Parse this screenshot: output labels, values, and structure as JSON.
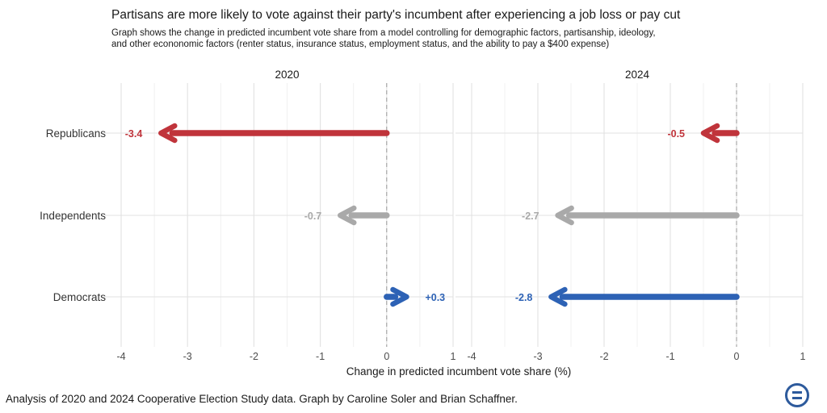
{
  "chart_data": {
    "type": "bar",
    "title": "Partisans are more likely to vote against their party's incumbent after experiencing a job loss or pay cut",
    "subtitle_lines": [
      "Graph shows the change in predicted incumbent vote share from a model controlling for demographic factors, partisanship, ideology,",
      "and other econonomic factors (renter status, insurance status, employment status, and the ability to pay a $400 expense)"
    ],
    "xlabel": "Change in predicted incumbent vote share (%)",
    "xlim": [
      -4,
      1
    ],
    "xticks": [
      -4,
      -3,
      -2,
      -1,
      0,
      1
    ],
    "xtick_labels": [
      "-4",
      "-3",
      "-2",
      "-1",
      "0",
      "1"
    ],
    "categories": [
      "Republicans",
      "Independents",
      "Democrats"
    ],
    "category_colors": {
      "Republicans": "#c0343b",
      "Independents": "#a9a9a9",
      "Democrats": "#2d62b5"
    },
    "panels": [
      {
        "name": "2020",
        "values": [
          -3.4,
          -0.7,
          0.3
        ],
        "labels": [
          "-3.4",
          "-0.7",
          "+0.3"
        ]
      },
      {
        "name": "2024",
        "values": [
          -0.5,
          -2.7,
          -2.8
        ],
        "labels": [
          "-0.5",
          "-2.7",
          "-2.8"
        ]
      }
    ],
    "grid": true,
    "reference_line": 0
  },
  "caption": "Analysis of 2020 and 2024 Cooperative Election Study data. Graph by Caroline Soler and Brian Schaffner.",
  "logo": {
    "icon": "ces-logo-icon",
    "color": "#2d5a9c"
  }
}
